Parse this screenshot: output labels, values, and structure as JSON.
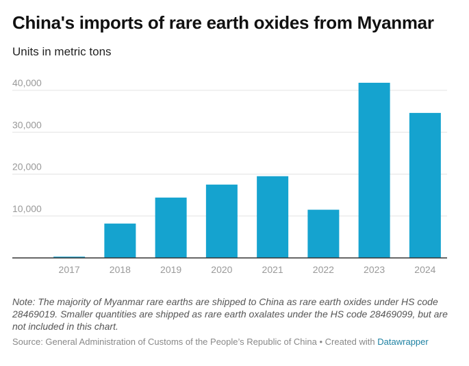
{
  "chart_data": {
    "type": "bar",
    "title": "China's imports of rare earth oxides from Myanmar",
    "subtitle": "Units in metric tons",
    "categories": [
      "2017",
      "2018",
      "2019",
      "2020",
      "2021",
      "2022",
      "2023",
      "2024"
    ],
    "values": [
      300,
      8200,
      14400,
      17500,
      19500,
      11500,
      41800,
      34600
    ],
    "color": "#15a3cf",
    "ylim": [
      0,
      40000
    ],
    "yticks": [
      {
        "value": 10000,
        "label": "10,000"
      },
      {
        "value": 20000,
        "label": "20,000"
      },
      {
        "value": 30000,
        "label": "30,000"
      },
      {
        "value": 40000,
        "label": "40,000"
      }
    ],
    "grid": true,
    "note": "Note: The majority of Myanmar rare earths are shipped to China as rare earth oxides under HS code 28469019. Smaller quantities are shipped as rare earth oxalates under the HS code 28469099, but are not included in this chart.",
    "source": "Source: General Administration of Customs of the People’s Republic of China • Created with",
    "credit": "Datawrapper"
  }
}
